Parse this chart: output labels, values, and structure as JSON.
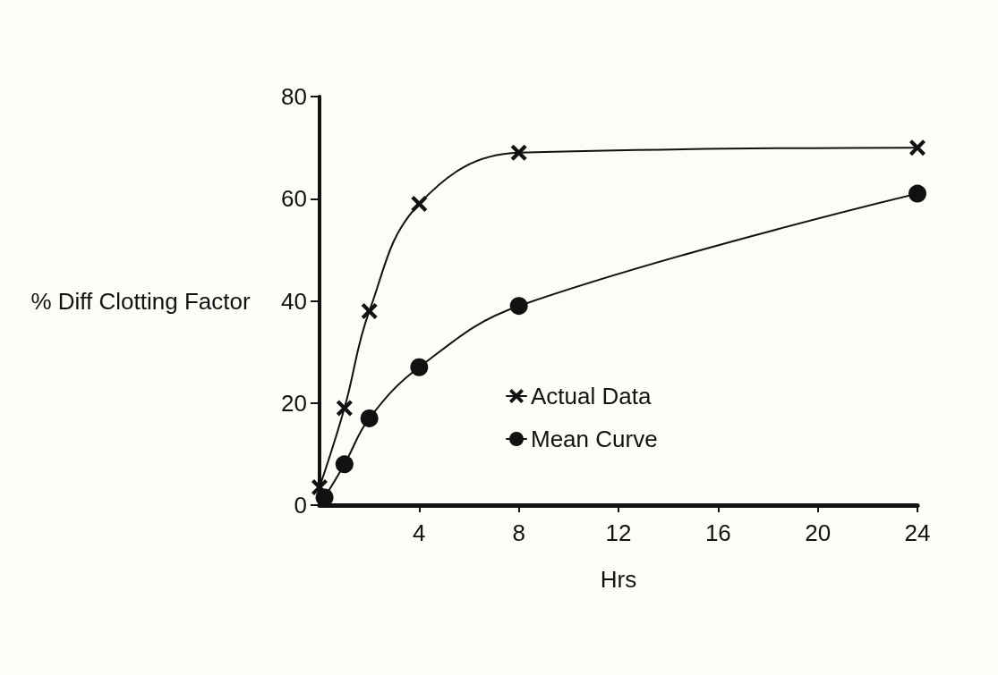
{
  "chart_data": {
    "type": "line",
    "xlabel": "Hrs",
    "ylabel": "% Diff Clotting Factor",
    "xlim": [
      0,
      24
    ],
    "xticks": [
      4,
      8,
      12,
      16,
      20,
      24
    ],
    "ylim": [
      0,
      80
    ],
    "yticks": [
      0,
      20,
      40,
      60,
      80
    ],
    "grid": false,
    "legend": "bottom",
    "line_style": "solid",
    "series": [
      {
        "name": "Actual Data",
        "color": "#111111",
        "marker": "cross",
        "x": [
          0,
          1,
          2,
          4,
          8,
          24
        ],
        "values": [
          3.5,
          19,
          38,
          59,
          69,
          70
        ]
      },
      {
        "name": "Mean Curve",
        "color": "#111111",
        "marker": "circle",
        "x": [
          0.2,
          1,
          2,
          4,
          8,
          24
        ],
        "values": [
          1.5,
          8,
          17,
          27,
          39,
          61
        ]
      }
    ]
  }
}
